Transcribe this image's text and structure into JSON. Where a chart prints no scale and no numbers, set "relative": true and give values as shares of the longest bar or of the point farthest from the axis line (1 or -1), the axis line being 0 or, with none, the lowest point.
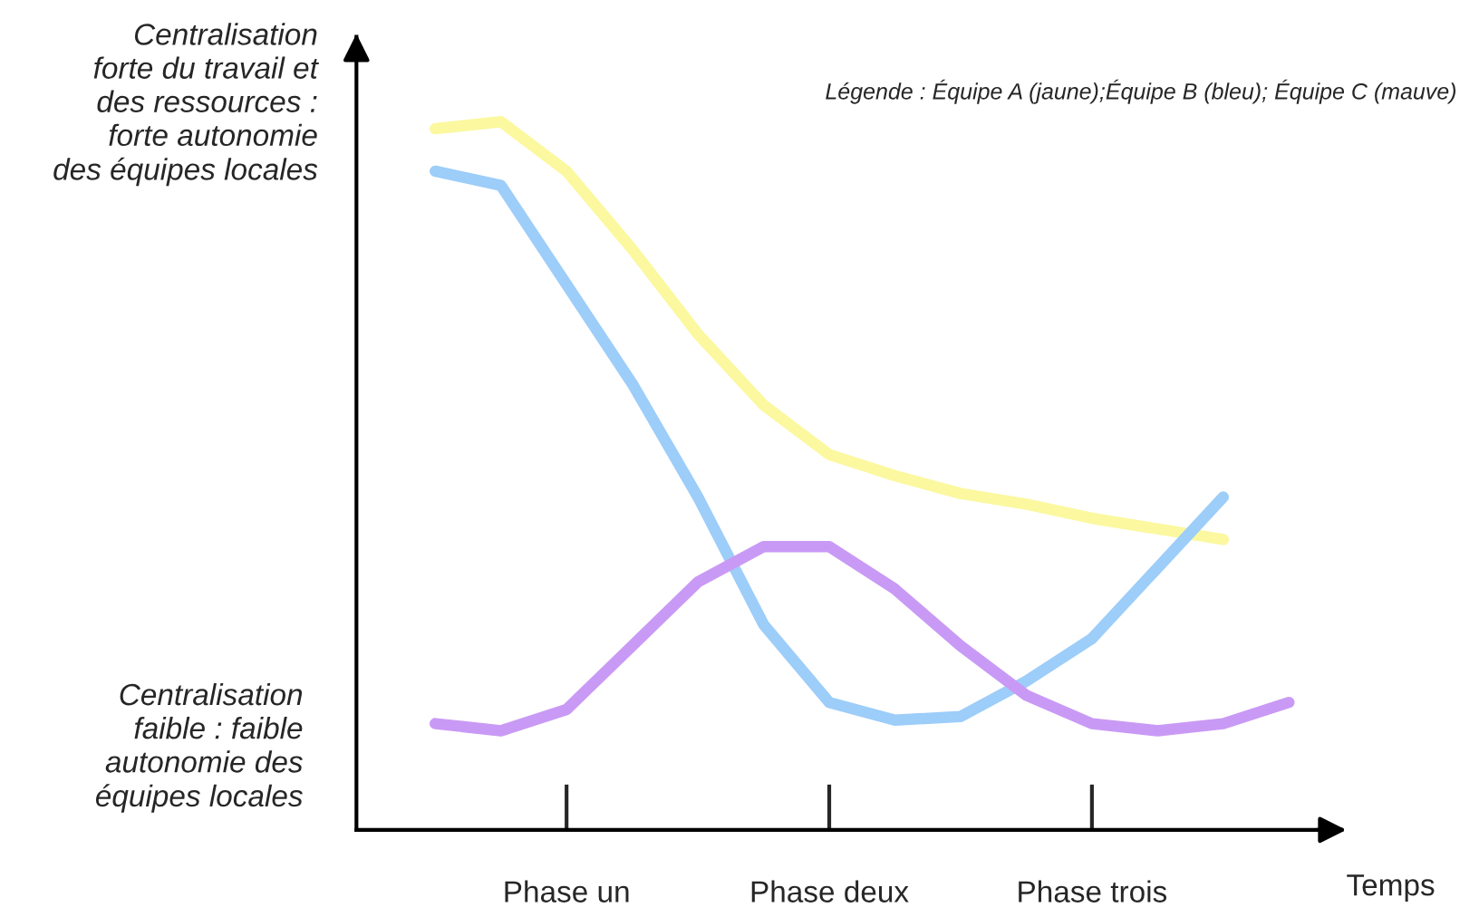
{
  "chart_data": {
    "type": "line",
    "relative": true,
    "xlabel": "Temps",
    "categories": [
      null,
      null,
      "Phase un",
      null,
      null,
      null,
      "Phase deux",
      null,
      null,
      null,
      "Phase trois",
      null,
      null,
      null
    ],
    "series": [
      {
        "color": "#fbf8a0",
        "values": [
          0.99,
          1.0,
          0.93,
          0.82,
          0.7,
          0.6,
          0.53,
          0.5,
          0.475,
          0.46,
          0.44,
          0.425,
          0.41,
          null
        ]
      },
      {
        "color": "#9dcdf9",
        "values": [
          0.93,
          0.91,
          0.77,
          0.63,
          0.47,
          0.29,
          0.18,
          0.155,
          0.16,
          0.21,
          0.27,
          0.37,
          0.47,
          null
        ]
      },
      {
        "color": "#c99af5",
        "values": [
          0.15,
          0.14,
          0.17,
          0.26,
          0.35,
          0.4,
          0.4,
          0.34,
          0.26,
          0.19,
          0.15,
          0.14,
          0.15,
          0.18
        ]
      }
    ],
    "annotations": [
      "Centralisation\nforte du travail et\ndes ressources :\nforte autonomie\ndes équipes locales",
      "Centralisation\nfaible : faible\nautonomie des\néquipes locales",
      "Légende : Équipe A (jaune);Équipe B (bleu); Équipe C (mauve)"
    ],
    "grid": false,
    "legend": false,
    "marker": "none",
    "line_style": "solid"
  }
}
